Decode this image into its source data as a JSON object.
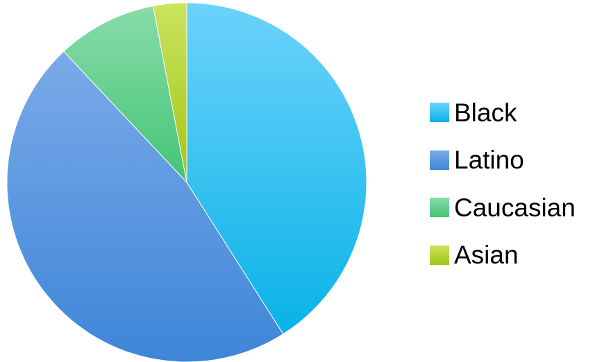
{
  "chart_data": {
    "type": "pie",
    "title": "",
    "legend_position": "right",
    "slices": [
      {
        "label": "Black",
        "value": 41,
        "color": "#2bc0f5",
        "color_light": "#6cd2fb",
        "color_dark": "#09b3e7"
      },
      {
        "label": "Latino",
        "value": 47,
        "color": "#4d95e2",
        "color_light": "#7aaae8",
        "color_dark": "#3e86d8"
      },
      {
        "label": "Caucasian",
        "value": 9,
        "color": "#5ed18c",
        "color_light": "#88dca8",
        "color_dark": "#44c477"
      },
      {
        "label": "Asian",
        "value": 3,
        "color": "#b2d52a",
        "color_light": "#cbe360",
        "color_dark": "#a2c514"
      }
    ]
  }
}
